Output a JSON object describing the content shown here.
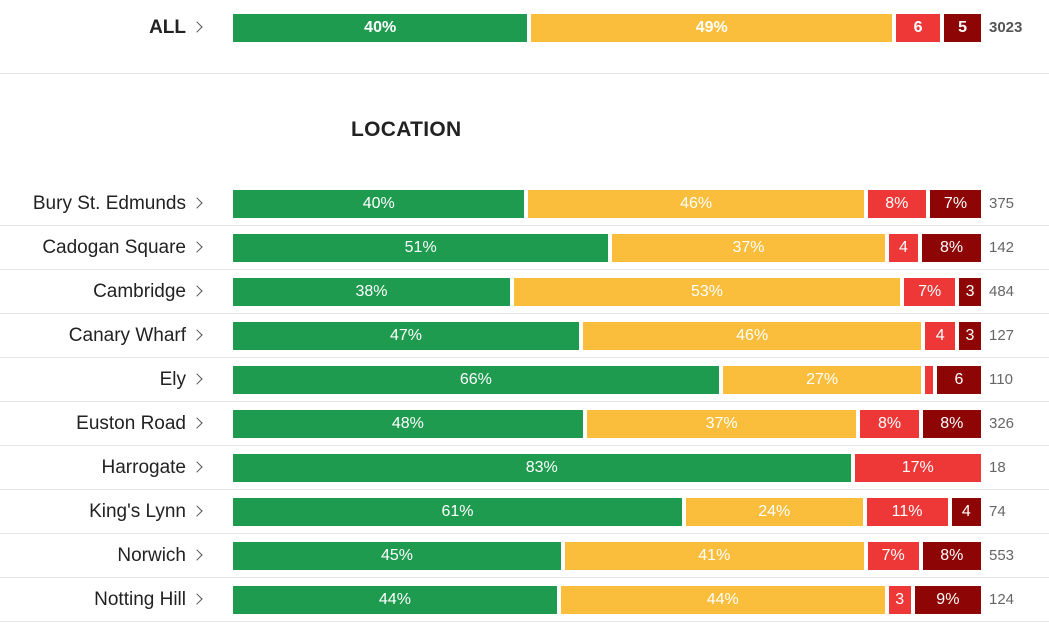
{
  "colors": {
    "green": "#1e9b4f",
    "yellow": "#fbbe3c",
    "red": "#ee3838",
    "darkred": "#8d0505"
  },
  "section_title": "LOCATION",
  "chart_data": {
    "type": "bar",
    "stacked": true,
    "orientation": "horizontal",
    "series_order": [
      "green",
      "yellow",
      "red",
      "darkred"
    ],
    "all": {
      "label": "ALL",
      "values": [
        40,
        49,
        6,
        5
      ],
      "labels": [
        "40%",
        "49%",
        "6",
        "5"
      ],
      "count": "3023"
    },
    "rows": [
      {
        "label": "Bury St. Edmunds",
        "values": [
          40,
          46,
          8,
          7
        ],
        "labels": [
          "40%",
          "46%",
          "8%",
          "7%"
        ],
        "count": "375"
      },
      {
        "label": "Cadogan Square",
        "values": [
          51,
          37,
          4,
          8
        ],
        "labels": [
          "51%",
          "37%",
          "4",
          "8%"
        ],
        "count": "142"
      },
      {
        "label": "Cambridge",
        "values": [
          38,
          53,
          7,
          3
        ],
        "labels": [
          "38%",
          "53%",
          "7%",
          "3"
        ],
        "count": "484"
      },
      {
        "label": "Canary Wharf",
        "values": [
          47,
          46,
          4,
          3
        ],
        "labels": [
          "47%",
          "46%",
          "4",
          "3"
        ],
        "count": "127"
      },
      {
        "label": "Ely",
        "values": [
          66,
          27,
          1,
          6
        ],
        "labels": [
          "66%",
          "27%",
          "",
          "6"
        ],
        "count": "110"
      },
      {
        "label": "Euston Road",
        "values": [
          48,
          37,
          8,
          8
        ],
        "labels": [
          "48%",
          "37%",
          "8%",
          "8%"
        ],
        "count": "326"
      },
      {
        "label": "Harrogate",
        "values": [
          83,
          0,
          17,
          0
        ],
        "labels": [
          "83%",
          "",
          "17%",
          ""
        ],
        "count": "18"
      },
      {
        "label": "King's Lynn",
        "values": [
          61,
          24,
          11,
          4
        ],
        "labels": [
          "61%",
          "24%",
          "11%",
          "4"
        ],
        "count": "74"
      },
      {
        "label": "Norwich",
        "values": [
          45,
          41,
          7,
          8
        ],
        "labels": [
          "45%",
          "41%",
          "7%",
          "8%"
        ],
        "count": "553"
      },
      {
        "label": "Notting Hill",
        "values": [
          44,
          44,
          3,
          9
        ],
        "labels": [
          "44%",
          "44%",
          "3",
          "9%"
        ],
        "count": "124"
      }
    ]
  }
}
